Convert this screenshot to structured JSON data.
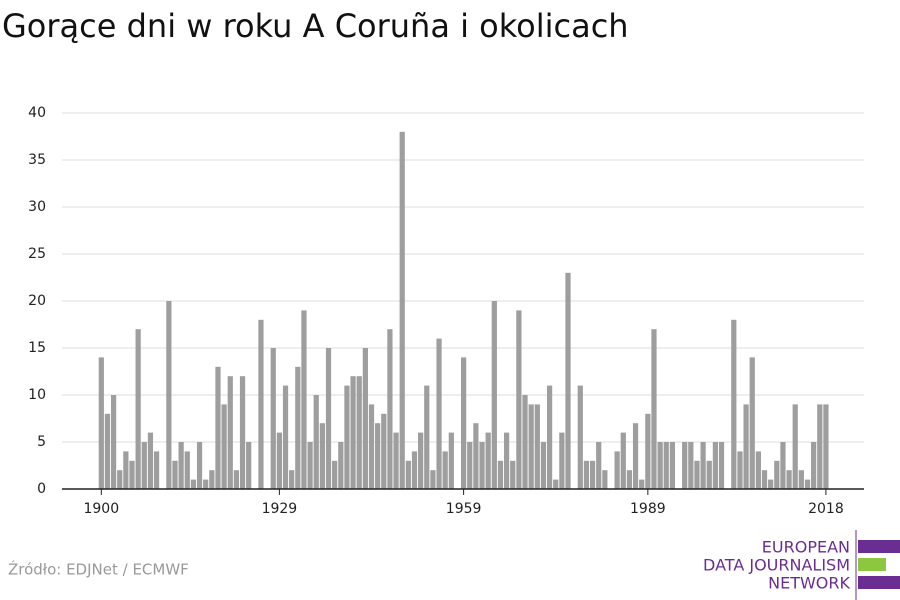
{
  "chart_data": {
    "type": "bar",
    "title": "Gorące dni w roku A Coruña i okolicach",
    "source": "Źródło: EDJNet / ECMWF",
    "logo": [
      "EUROPEAN",
      "DATA JOURNALISM",
      "NETWORK"
    ],
    "color": "#9e9e9e",
    "grid": true,
    "x": [
      1900,
      1901,
      1902,
      1903,
      1904,
      1905,
      1906,
      1907,
      1908,
      1909,
      1910,
      1911,
      1912,
      1913,
      1914,
      1915,
      1916,
      1917,
      1918,
      1919,
      1920,
      1921,
      1922,
      1923,
      1924,
      1925,
      1926,
      1927,
      1928,
      1929,
      1930,
      1931,
      1932,
      1933,
      1934,
      1935,
      1936,
      1937,
      1938,
      1939,
      1940,
      1941,
      1942,
      1943,
      1944,
      1945,
      1946,
      1947,
      1948,
      1949,
      1950,
      1951,
      1952,
      1953,
      1954,
      1955,
      1956,
      1957,
      1958,
      1959,
      1960,
      1961,
      1962,
      1963,
      1964,
      1965,
      1966,
      1967,
      1968,
      1969,
      1970,
      1971,
      1972,
      1973,
      1974,
      1975,
      1976,
      1977,
      1978,
      1979,
      1980,
      1981,
      1982,
      1983,
      1984,
      1985,
      1986,
      1987,
      1988,
      1989,
      1990,
      1991,
      1992,
      1993,
      1994,
      1995,
      1996,
      1997,
      1998,
      1999,
      2000,
      2001,
      2002,
      2003,
      2004,
      2005,
      2006,
      2007,
      2008,
      2009,
      2010,
      2011,
      2012,
      2013,
      2014,
      2015,
      2016,
      2017,
      2018
    ],
    "values": [
      14,
      8,
      10,
      2,
      4,
      3,
      17,
      5,
      6,
      4,
      0,
      20,
      3,
      5,
      4,
      1,
      5,
      1,
      2,
      13,
      9,
      12,
      2,
      12,
      5,
      0,
      18,
      0,
      15,
      6,
      11,
      2,
      13,
      19,
      5,
      10,
      7,
      15,
      3,
      5,
      11,
      12,
      12,
      15,
      9,
      7,
      8,
      17,
      6,
      38,
      3,
      4,
      6,
      11,
      2,
      16,
      4,
      6,
      0,
      14,
      5,
      7,
      5,
      6,
      20,
      3,
      6,
      3,
      19,
      10,
      9,
      9,
      5,
      11,
      1,
      6,
      23,
      0,
      11,
      3,
      3,
      5,
      2,
      0,
      4,
      6,
      2,
      7,
      1,
      8,
      17,
      5,
      5,
      5,
      0,
      5,
      5,
      3,
      5,
      3,
      5,
      5,
      0,
      18,
      4,
      9,
      14,
      4,
      2,
      1,
      3,
      5,
      2,
      9,
      2,
      1,
      5,
      9,
      9
    ],
    "xlim": [
      1893.6,
      2024.2
    ],
    "xticks": [
      1900,
      1929,
      1959,
      1989,
      2018
    ],
    "ylim": [
      0,
      40
    ],
    "yticks": [
      0,
      5,
      10,
      15,
      20,
      25,
      30,
      35,
      40
    ]
  }
}
